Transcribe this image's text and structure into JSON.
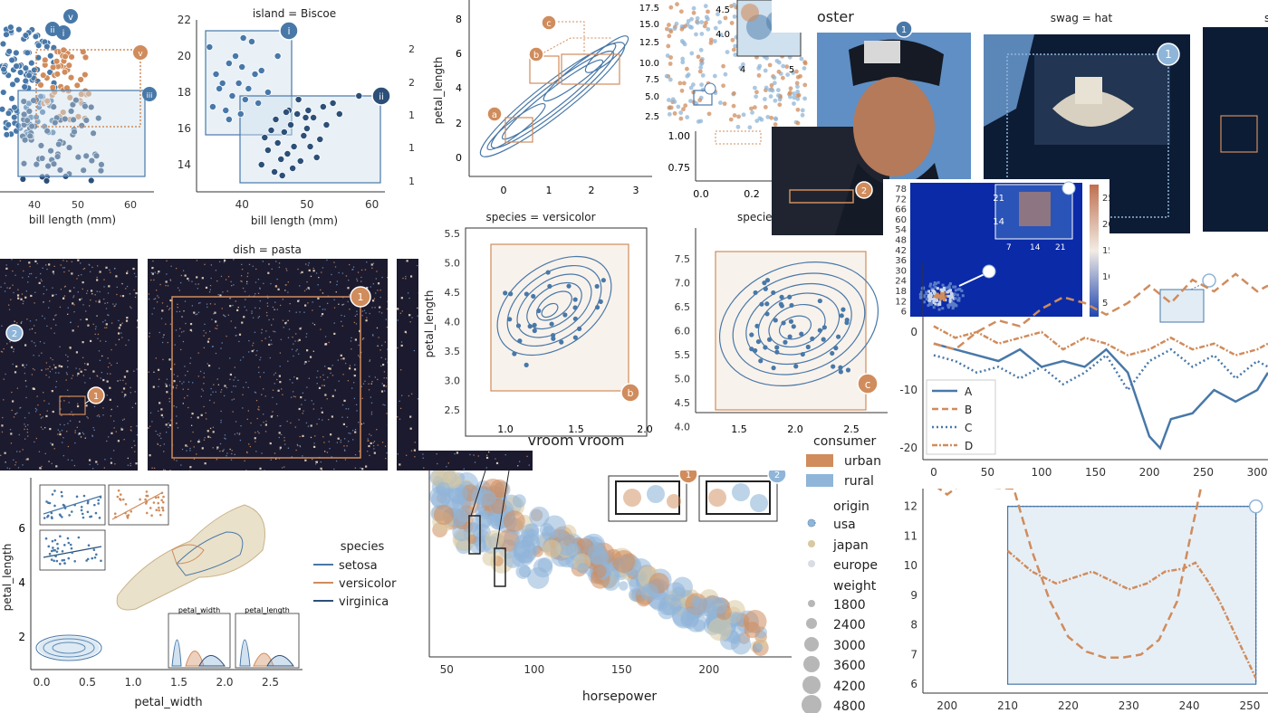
{
  "colors": {
    "blue": "#4878a8",
    "orange": "#d08c5c",
    "lightblue": "#8fb5d8",
    "navy": "#2c4f78",
    "tan": "#d9c8a0",
    "gray": "#555555",
    "darkbg": "#1c1a2e",
    "heatmap": "#0b2aa8"
  },
  "penguins": {
    "left_xlabel": "bill length (mm)",
    "left_xticks": [
      "40",
      "50",
      "60"
    ],
    "left_badges": [
      "v",
      "i",
      "ii",
      "iii",
      "v",
      "iii"
    ],
    "biscoe_title": "island = Biscoe",
    "biscoe_xlabel": "bill length (mm)",
    "biscoe_xticks": [
      "40",
      "50",
      "60"
    ],
    "biscoe_yticks": [
      "22",
      "20",
      "18",
      "16",
      "14"
    ],
    "biscoe_badges": [
      "i",
      "ii"
    ],
    "right_edge_yticks": [
      "2",
      "2",
      "1",
      "1",
      "1"
    ]
  },
  "iris_kde_top": {
    "ylabel": "petal_length",
    "yticks": [
      "8",
      "6",
      "4",
      "2",
      "0"
    ],
    "xticks": [
      "0",
      "1",
      "2",
      "3"
    ],
    "badges": [
      "a",
      "b",
      "c"
    ]
  },
  "iris_scatter_small": {
    "yticks": [
      "17.5",
      "15.0",
      "12.5",
      "10.0",
      "7.5",
      "5.0",
      "2.5"
    ],
    "inset_yticks": [
      "4.5",
      "4.0"
    ],
    "inset_xticks": [
      "4",
      "5"
    ]
  },
  "iris_partial": {
    "yticks": [
      "1.00",
      "0.75"
    ],
    "xticks": [
      "0.0",
      "0.2"
    ]
  },
  "poster": {
    "title_fragment": "oster",
    "badges": [
      "1",
      "2"
    ],
    "hat_title": "swag = hat",
    "hat_badges": [
      "1"
    ],
    "edge_title": "s"
  },
  "heatmap": {
    "yticks": [
      "78",
      "72",
      "66",
      "60",
      "54",
      "48",
      "42",
      "36",
      "30",
      "24",
      "18",
      "12",
      "6"
    ],
    "inset_yticks": [
      "21",
      "14"
    ],
    "inset_xticks": [
      "7",
      "14",
      "21"
    ],
    "colorbar_ticks": [
      "25",
      "20",
      "15",
      "10",
      "5"
    ]
  },
  "lights": {
    "pasta_title": "dish = pasta",
    "left_badges": [
      "2",
      "1"
    ],
    "pasta_badges": [
      "1"
    ]
  },
  "iris_kde_versicolor": {
    "title": "species = versicolor",
    "ylabel": "petal_length",
    "yticks": [
      "5.5",
      "5.0",
      "4.5",
      "4.0",
      "3.5",
      "3.0",
      "2.5"
    ],
    "xticks": [
      "1.0",
      "1.5",
      "2.0"
    ],
    "xlabel": "vroom vroom",
    "badges": [
      "b"
    ]
  },
  "iris_kde_virginica": {
    "title": "specie",
    "yticks": [
      "7.5",
      "7.0",
      "6.5",
      "6.0",
      "5.5",
      "5.0",
      "4.5",
      "4.0"
    ],
    "xticks": [
      "1.5",
      "2.0",
      "2.5"
    ],
    "badges": [
      "c"
    ]
  },
  "iris_pair": {
    "ylabel": "petal_length",
    "xlabel": "petal_width",
    "yticks": [
      "6",
      "4",
      "2"
    ],
    "xticks": [
      "0.0",
      "0.5",
      "1.0",
      "1.5",
      "2.0",
      "2.5"
    ],
    "inset_labels": [
      "petal_width",
      "petal_length"
    ],
    "legend_title": "species",
    "legend": [
      "setosa",
      "versicolor",
      "virginica"
    ]
  },
  "mpg": {
    "xlabel": "horsepower",
    "xticks": [
      "50",
      "100",
      "150",
      "200"
    ],
    "badges": [
      "1",
      "2"
    ],
    "legend": {
      "consumer_title": "consumer",
      "consumer": [
        "urban",
        "rural"
      ],
      "origin_title": "origin",
      "origin": [
        "usa",
        "japan",
        "europe"
      ],
      "weight_title": "weight",
      "weight": [
        "1800",
        "2400",
        "3000",
        "3600",
        "4200",
        "4800"
      ]
    }
  },
  "lines_top": {
    "yticks": [
      "0",
      "-10",
      "-20"
    ],
    "xticks": [
      "0",
      "50",
      "100",
      "150",
      "200",
      "250",
      "300"
    ],
    "legend": [
      "A",
      "B",
      "C",
      "D"
    ]
  },
  "lines_bottom": {
    "yticks": [
      "12",
      "11",
      "10",
      "9",
      "8",
      "7",
      "6"
    ],
    "xticks": [
      "200",
      "210",
      "220",
      "230",
      "240",
      "250"
    ]
  },
  "chart_data": [
    {
      "type": "scatter",
      "title": "island = Biscoe",
      "xlabel": "bill length (mm)",
      "xlim": [
        33,
        62
      ],
      "ylim": [
        12.5,
        22
      ],
      "series": [
        {
          "values": [
            [
              35,
              20.5
            ],
            [
              36,
              19
            ],
            [
              37,
              18.5
            ],
            [
              38,
              19.6
            ],
            [
              38.5,
              17.8
            ],
            [
              39,
              20
            ],
            [
              39.5,
              18.5
            ],
            [
              40,
              19.4
            ],
            [
              40.5,
              17.6
            ],
            [
              41,
              18.2
            ],
            [
              41.5,
              20.8
            ],
            [
              42,
              19
            ],
            [
              37.5,
              17
            ],
            [
              36.5,
              18.2
            ],
            [
              39.8,
              16.8
            ],
            [
              43,
              19.2
            ],
            [
              44,
              18
            ],
            [
              45.5,
              20
            ],
            [
              40.2,
              21
            ],
            [
              38,
              16.5
            ],
            [
              42.5,
              17.4
            ],
            [
              35.5,
              17.2
            ]
          ]
        },
        {
          "values": [
            [
              43,
              14
            ],
            [
              44,
              14.8
            ],
            [
              45,
              13.6
            ],
            [
              45.5,
              15.2
            ],
            [
              46,
              14.3
            ],
            [
              46.5,
              15.8
            ],
            [
              47,
              14.6
            ],
            [
              47.5,
              16.2
            ],
            [
              48,
              15
            ],
            [
              48.5,
              16.8
            ],
            [
              49,
              14.2
            ],
            [
              49.5,
              15.6
            ],
            [
              50,
              16
            ],
            [
              50.5,
              15
            ],
            [
              51,
              16.6
            ],
            [
              52,
              15.4
            ],
            [
              53,
              16.2
            ],
            [
              44.5,
              15.9
            ],
            [
              46.2,
              13.4
            ],
            [
              47.8,
              13.8
            ],
            [
              50.2,
              17
            ],
            [
              48.7,
              17.6
            ],
            [
              55,
              16.8
            ],
            [
              51.5,
              14.4
            ],
            [
              45.2,
              16.5
            ],
            [
              49.8,
              16.6
            ],
            [
              52.5,
              17.2
            ],
            [
              47.2,
              17
            ],
            [
              43.5,
              15.5
            ],
            [
              54,
              17.4
            ],
            [
              58,
              17.8
            ],
            [
              46.8,
              16.9
            ]
          ]
        }
      ]
    },
    {
      "type": "line",
      "xlim": [
        -10,
        310
      ],
      "ylim": [
        -22,
        12
      ],
      "series": [
        {
          "name": "A",
          "values": [
            [
              0,
              -2
            ],
            [
              20,
              -3
            ],
            [
              40,
              -4
            ],
            [
              60,
              -5
            ],
            [
              80,
              -3
            ],
            [
              100,
              -6
            ],
            [
              120,
              -5
            ],
            [
              140,
              -6
            ],
            [
              160,
              -3
            ],
            [
              180,
              -7
            ],
            [
              200,
              -18
            ],
            [
              210,
              -20
            ],
            [
              220,
              -15
            ],
            [
              240,
              -14
            ],
            [
              260,
              -10
            ],
            [
              280,
              -12
            ],
            [
              300,
              -10
            ],
            [
              310,
              -7
            ]
          ]
        },
        {
          "name": "B",
          "values": [
            [
              0,
              -2
            ],
            [
              20,
              -3
            ],
            [
              40,
              0
            ],
            [
              60,
              2
            ],
            [
              80,
              1
            ],
            [
              100,
              4
            ],
            [
              120,
              6
            ],
            [
              140,
              5
            ],
            [
              160,
              3
            ],
            [
              180,
              5
            ],
            [
              200,
              8
            ],
            [
              220,
              5
            ],
            [
              240,
              9
            ],
            [
              260,
              7
            ],
            [
              280,
              10
            ],
            [
              300,
              7
            ],
            [
              310,
              8
            ]
          ]
        },
        {
          "name": "C",
          "values": [
            [
              0,
              -4
            ],
            [
              20,
              -5
            ],
            [
              40,
              -7
            ],
            [
              60,
              -6
            ],
            [
              80,
              -8
            ],
            [
              100,
              -6
            ],
            [
              120,
              -9
            ],
            [
              140,
              -7
            ],
            [
              160,
              -4
            ],
            [
              180,
              -10
            ],
            [
              200,
              -5
            ],
            [
              220,
              -3
            ],
            [
              240,
              -6
            ],
            [
              260,
              -4
            ],
            [
              280,
              -8
            ],
            [
              300,
              -5
            ],
            [
              310,
              -6
            ]
          ]
        },
        {
          "name": "D",
          "values": [
            [
              0,
              1
            ],
            [
              20,
              -1
            ],
            [
              40,
              0
            ],
            [
              60,
              -2
            ],
            [
              80,
              -1
            ],
            [
              100,
              0
            ],
            [
              120,
              -3
            ],
            [
              140,
              -1
            ],
            [
              160,
              -2
            ],
            [
              180,
              -4
            ],
            [
              200,
              -3
            ],
            [
              220,
              -1
            ],
            [
              240,
              -3
            ],
            [
              260,
              -2
            ],
            [
              280,
              -4
            ],
            [
              300,
              -3
            ],
            [
              310,
              -2
            ]
          ]
        }
      ]
    },
    {
      "type": "line",
      "xlim": [
        196,
        253
      ],
      "ylim": [
        5.7,
        12.6
      ],
      "series": [
        {
          "name": "D",
          "values": [
            [
              210,
              10.5
            ],
            [
              214,
              9.8
            ],
            [
              218,
              9.4
            ],
            [
              221,
              9.6
            ],
            [
              224,
              9.8
            ],
            [
              227,
              9.5
            ],
            [
              230,
              9.2
            ],
            [
              233,
              9.4
            ],
            [
              236,
              9.8
            ],
            [
              239,
              9.9
            ],
            [
              241,
              10.1
            ],
            [
              243,
              9.5
            ],
            [
              245,
              8.8
            ],
            [
              248,
              7.5
            ],
            [
              251,
              6.2
            ]
          ]
        },
        {
          "name": "B",
          "values": [
            [
              198,
              12.7
            ],
            [
              200,
              12.4
            ],
            [
              202,
              12.7
            ],
            [
              211,
              12.6
            ],
            [
              214,
              10.5
            ],
            [
              217,
              8.8
            ],
            [
              220,
              7.6
            ],
            [
              223,
              7.1
            ],
            [
              226,
              6.9
            ],
            [
              229,
              6.9
            ],
            [
              232,
              7.0
            ],
            [
              235,
              7.5
            ],
            [
              238,
              8.8
            ],
            [
              240,
              10.8
            ],
            [
              242,
              12.7
            ]
          ]
        }
      ]
    }
  ]
}
